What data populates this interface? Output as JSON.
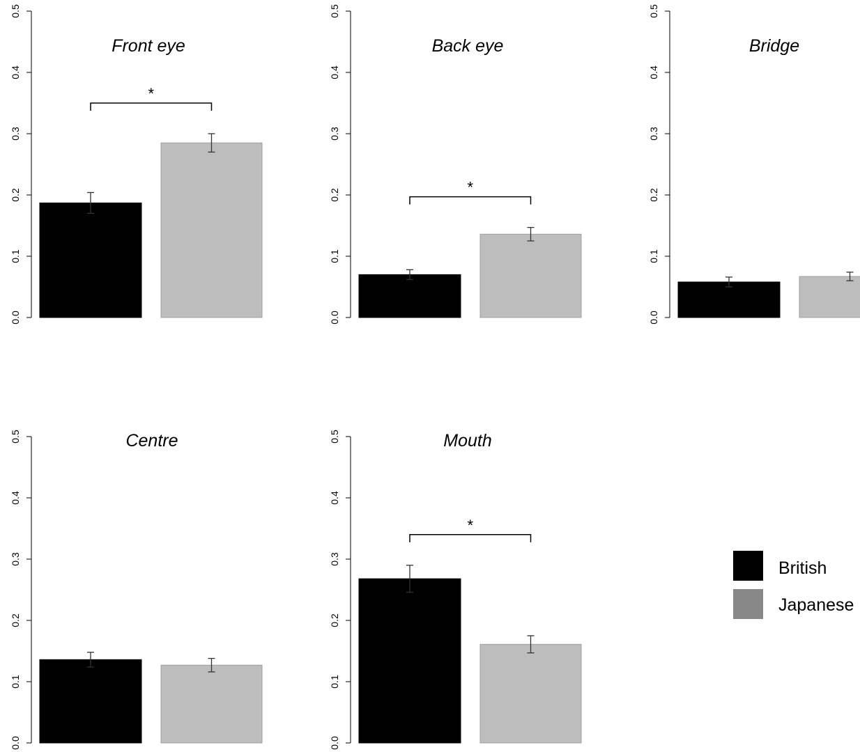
{
  "chart_data": [
    {
      "type": "bar",
      "title": "Front eye",
      "categories": [
        "British",
        "Japanese"
      ],
      "values": [
        0.187,
        0.285
      ],
      "errors": [
        0.017,
        0.015
      ],
      "significance": "*",
      "yticks": [
        "0.0",
        "0.1",
        "0.2",
        "0.3",
        "0.4",
        "0.5"
      ],
      "ylim": [
        0,
        0.5
      ]
    },
    {
      "type": "bar",
      "title": "Back eye",
      "categories": [
        "British",
        "Japanese"
      ],
      "values": [
        0.07,
        0.136
      ],
      "errors": [
        0.008,
        0.011
      ],
      "significance": "*",
      "yticks": [
        "0.0",
        "0.1",
        "0.2",
        "0.3",
        "0.4",
        "0.5"
      ],
      "ylim": [
        0,
        0.5
      ]
    },
    {
      "type": "bar",
      "title": "Bridge",
      "categories": [
        "British",
        "Japanese"
      ],
      "values": [
        0.058,
        0.067
      ],
      "errors": [
        0.008,
        0.007
      ],
      "significance": "",
      "yticks": [
        "0.0",
        "0.1",
        "0.2",
        "0.3",
        "0.4",
        "0.5"
      ],
      "ylim": [
        0,
        0.5
      ]
    },
    {
      "type": "bar",
      "title": "Centre",
      "categories": [
        "British",
        "Japanese"
      ],
      "values": [
        0.136,
        0.127
      ],
      "errors": [
        0.012,
        0.011
      ],
      "significance": "",
      "yticks": [
        "0.0",
        "0.1",
        "0.2",
        "0.3",
        "0.4",
        "0.5"
      ],
      "ylim": [
        0,
        0.5
      ]
    },
    {
      "type": "bar",
      "title": "Mouth",
      "categories": [
        "British",
        "Japanese"
      ],
      "values": [
        0.268,
        0.161
      ],
      "errors": [
        0.022,
        0.014
      ],
      "significance": "*",
      "yticks": [
        "0.0",
        "0.1",
        "0.2",
        "0.3",
        "0.4",
        "0.5"
      ],
      "ylim": [
        0,
        0.5
      ]
    }
  ],
  "legend": {
    "items": [
      {
        "label": "British",
        "color": "#000000"
      },
      {
        "label": "Japanese",
        "color": "#888888"
      }
    ]
  },
  "colors": {
    "british_bar": "#000000",
    "japanese_bar": "#bdbdbd",
    "japanese_bar_border": "#a0a0a0"
  }
}
